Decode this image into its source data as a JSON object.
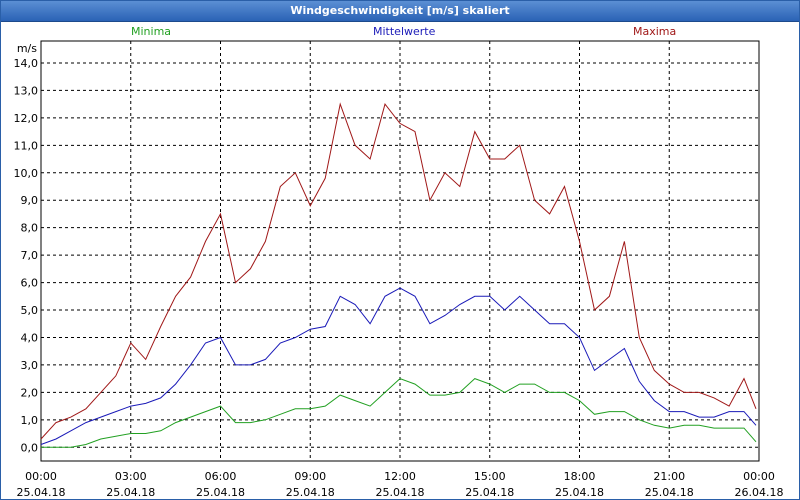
{
  "window": {
    "title": "Windgeschwindigkeit [m/s] skaliert"
  },
  "colors": {
    "minima": "#22a022",
    "mittelwerte": "#1a1ab8",
    "maxima": "#a01818",
    "grid": "#000000"
  },
  "chart_data": {
    "type": "line",
    "title": "Windgeschwindigkeit [m/s] skaliert",
    "ylabel": "m/s",
    "ylim": [
      -0.5,
      14.8
    ],
    "yticks": [
      0,
      1,
      2,
      3,
      4,
      5,
      6,
      7,
      8,
      9,
      10,
      11,
      12,
      13,
      14
    ],
    "ytick_labels": [
      "0,0",
      "1,0",
      "2,0",
      "3,0",
      "4,0",
      "5,0",
      "6,0",
      "7,0",
      "8,0",
      "9,0",
      "10,0",
      "11,0",
      "12,0",
      "13,0",
      "14,0"
    ],
    "xlim": [
      0,
      24
    ],
    "xticks": [
      0,
      3,
      6,
      9,
      12,
      15,
      18,
      21,
      24
    ],
    "xtick_labels": [
      [
        "00:00",
        "25.04.18"
      ],
      [
        "03:00",
        "25.04.18"
      ],
      [
        "06:00",
        "25.04.18"
      ],
      [
        "09:00",
        "25.04.18"
      ],
      [
        "12:00",
        "25.04.18"
      ],
      [
        "15:00",
        "25.04.18"
      ],
      [
        "18:00",
        "25.04.18"
      ],
      [
        "21:00",
        "25.04.18"
      ],
      [
        "00:00",
        "26.04.18"
      ]
    ],
    "grid": true,
    "legend": [
      "Minima",
      "Mittelwerte",
      "Maxima"
    ],
    "x": [
      0,
      0.5,
      1,
      1.5,
      2,
      2.5,
      3,
      3.5,
      4,
      4.5,
      5,
      5.5,
      6,
      6.5,
      7,
      7.5,
      8,
      8.5,
      9,
      9.5,
      10,
      10.5,
      11,
      11.5,
      12,
      12.5,
      13,
      13.5,
      14,
      14.5,
      15,
      15.5,
      16,
      16.5,
      17,
      17.5,
      18,
      18.5,
      19,
      19.5,
      20,
      20.5,
      21,
      21.5,
      22,
      22.5,
      23,
      23.5,
      23.9
    ],
    "series": [
      {
        "name": "Maxima",
        "values": [
          0.3,
          0.9,
          1.1,
          1.4,
          2.0,
          2.6,
          3.8,
          3.2,
          4.4,
          5.5,
          6.2,
          7.5,
          8.5,
          6.0,
          6.5,
          7.5,
          9.5,
          10.0,
          8.8,
          9.8,
          12.5,
          11.0,
          10.5,
          12.5,
          11.8,
          11.5,
          9.0,
          10.0,
          9.5,
          11.5,
          10.5,
          10.5,
          11.0,
          9.0,
          8.5,
          9.5,
          7.5,
          5.0,
          5.5,
          7.5,
          4.0,
          2.8,
          2.3,
          2.0,
          2.0,
          1.8,
          1.5,
          2.5,
          1.4
        ]
      },
      {
        "name": "Mittelwerte",
        "values": [
          0.1,
          0.3,
          0.6,
          0.9,
          1.1,
          1.3,
          1.5,
          1.6,
          1.8,
          2.3,
          3.0,
          3.8,
          4.0,
          3.0,
          3.0,
          3.2,
          3.8,
          4.0,
          4.3,
          4.4,
          5.5,
          5.2,
          4.5,
          5.5,
          5.8,
          5.5,
          4.5,
          4.8,
          5.2,
          5.5,
          5.5,
          5.0,
          5.5,
          5.0,
          4.5,
          4.5,
          4.0,
          2.8,
          3.2,
          3.6,
          2.4,
          1.7,
          1.3,
          1.3,
          1.1,
          1.1,
          1.3,
          1.3,
          0.8
        ]
      },
      {
        "name": "Minima",
        "values": [
          0.0,
          0.0,
          0.0,
          0.1,
          0.3,
          0.4,
          0.5,
          0.5,
          0.6,
          0.9,
          1.1,
          1.3,
          1.5,
          0.9,
          0.9,
          1.0,
          1.2,
          1.4,
          1.4,
          1.5,
          1.9,
          1.7,
          1.5,
          2.0,
          2.5,
          2.3,
          1.9,
          1.9,
          2.0,
          2.5,
          2.3,
          2.0,
          2.3,
          2.3,
          2.0,
          2.0,
          1.7,
          1.2,
          1.3,
          1.3,
          1.0,
          0.8,
          0.7,
          0.8,
          0.8,
          0.7,
          0.7,
          0.7,
          0.2
        ]
      }
    ]
  }
}
